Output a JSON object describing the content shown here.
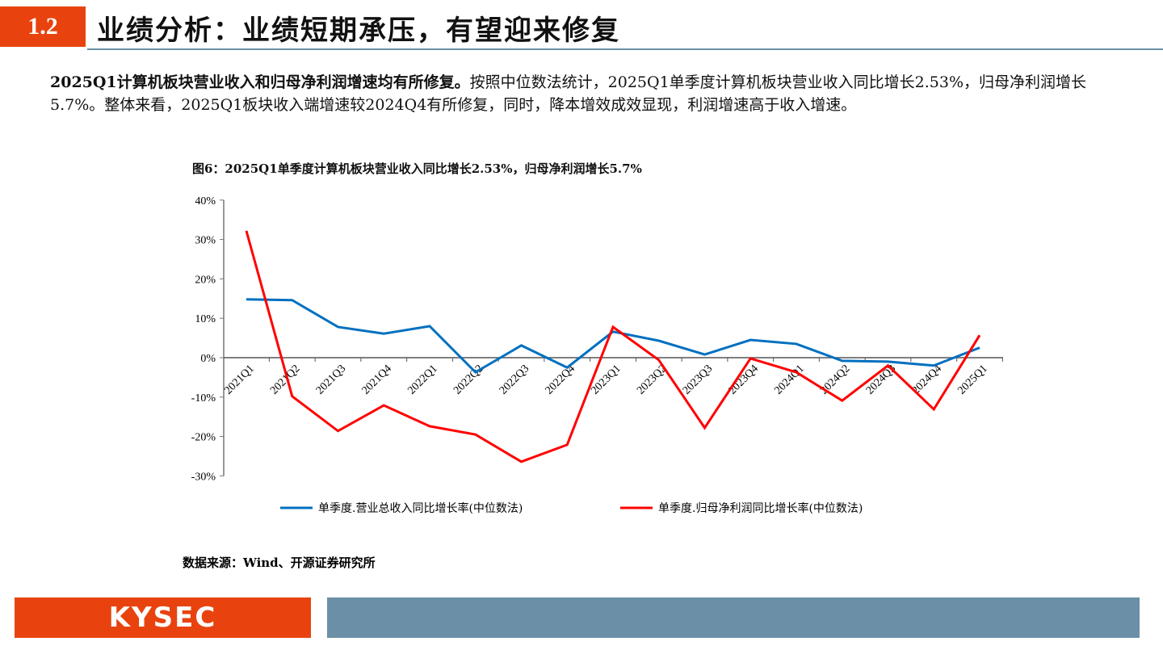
{
  "header": {
    "section": "1.2",
    "title": "业绩分析：业绩短期承压，有望迎来修复"
  },
  "body": {
    "bold": "2025Q1计算机板块营业收入和归母净利润增速均有所修复。",
    "text": "按照中位数法统计，2025Q1单季度计算机板块营业收入同比增长2.53%，归母净利润增长5.7%。整体来看，2025Q1板块收入端增速较2024Q4有所修复，同时，降本增效成效显现，利润增速高于收入增速。"
  },
  "chart_data": {
    "type": "line",
    "title": "图6：2025Q1单季度计算机板块营业收入同比增长2.53%，归母净利润增长5.7%",
    "categories": [
      "2021Q1",
      "2021Q2",
      "2021Q3",
      "2021Q4",
      "2022Q1",
      "2022Q2",
      "2022Q3",
      "2022Q4",
      "2023Q1",
      "2023Q2",
      "2023Q3",
      "2023Q4",
      "2024Q1",
      "2024Q2",
      "2024Q3",
      "2024Q4",
      "2025Q1"
    ],
    "yticks": [
      "40%",
      "30%",
      "20%",
      "10%",
      "0%",
      "-10%",
      "-20%",
      "-30%"
    ],
    "ylim": [
      -30,
      40
    ],
    "grid": false,
    "legend": "bottom",
    "series": [
      {
        "name": "单季度.营业总收入同比增长率(中位数法)",
        "color": "#0070c0",
        "values": [
          14.8,
          14.6,
          7.8,
          6.1,
          8.0,
          -3.7,
          3.1,
          -2.5,
          6.6,
          4.3,
          0.8,
          4.5,
          3.5,
          -0.8,
          -1.0,
          -2.0,
          2.53
        ]
      },
      {
        "name": "单季度.归母净利润同比增长率(中位数法)",
        "color": "#ff0000",
        "values": [
          32.2,
          -9.8,
          -18.6,
          -12.1,
          -17.4,
          -19.5,
          -26.4,
          -22.1,
          7.8,
          -0.6,
          -17.8,
          -0.2,
          -3.7,
          -10.9,
          -2.0,
          -13.1,
          5.7
        ]
      }
    ]
  },
  "source": "数据来源：Wind、开源证券研究所",
  "footer": {
    "logo": "KYSEC"
  }
}
